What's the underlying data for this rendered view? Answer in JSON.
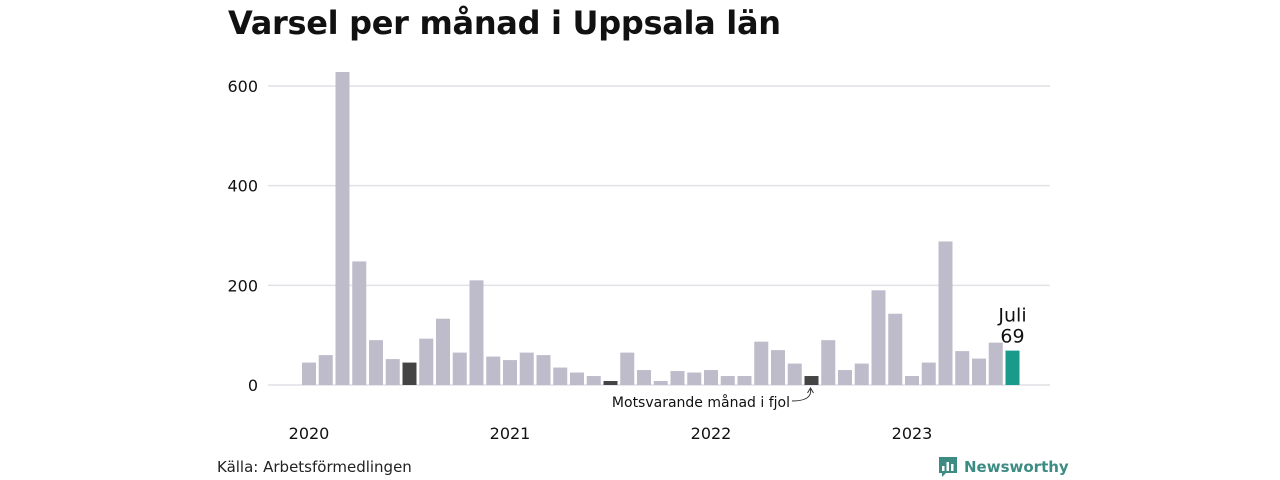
{
  "title": "Varsel per månad i Uppsala län",
  "source": "Källa: Arbetsförmedlingen",
  "brand": "Newsworthy",
  "colors": {
    "bar": "#bebccb",
    "highlight": "#1a9a8b",
    "compare": "#444444",
    "grid": "#e1e1e6",
    "brand": "#3d8c84"
  },
  "chart_data": {
    "type": "bar",
    "title": "Varsel per månad i Uppsala län",
    "xlabel": "",
    "ylabel": "",
    "ylim": [
      0,
      630
    ],
    "yticks": [
      0,
      200,
      400,
      600
    ],
    "grid": true,
    "year_labels": [
      {
        "label": "2020",
        "index": 0
      },
      {
        "label": "2021",
        "index": 12
      },
      {
        "label": "2022",
        "index": 24
      },
      {
        "label": "2023",
        "index": 36
      }
    ],
    "categories": [
      "2020-01",
      "2020-02",
      "2020-03",
      "2020-04",
      "2020-05",
      "2020-06",
      "2020-07",
      "2020-08",
      "2020-09",
      "2020-10",
      "2020-11",
      "2020-12",
      "2021-01",
      "2021-02",
      "2021-03",
      "2021-04",
      "2021-05",
      "2021-06",
      "2021-07",
      "2021-08",
      "2021-09",
      "2021-10",
      "2021-11",
      "2021-12",
      "2022-01",
      "2022-02",
      "2022-03",
      "2022-04",
      "2022-05",
      "2022-06",
      "2022-07",
      "2022-08",
      "2022-09",
      "2022-10",
      "2022-11",
      "2022-12",
      "2023-01",
      "2023-02",
      "2023-03",
      "2023-04",
      "2023-05",
      "2023-06",
      "2023-07"
    ],
    "values": [
      45,
      60,
      628,
      248,
      90,
      52,
      45,
      93,
      133,
      65,
      210,
      57,
      50,
      65,
      60,
      35,
      25,
      18,
      8,
      65,
      30,
      8,
      28,
      25,
      30,
      18,
      18,
      87,
      70,
      43,
      18,
      90,
      30,
      43,
      190,
      143,
      18,
      45,
      288,
      68,
      53,
      85,
      69
    ],
    "compare_indices": [
      6,
      18,
      30
    ],
    "highlight_index": 42,
    "highlight_label": "Juli",
    "highlight_value_label": "69",
    "annotation": "Motsvarande månad i fjol"
  }
}
